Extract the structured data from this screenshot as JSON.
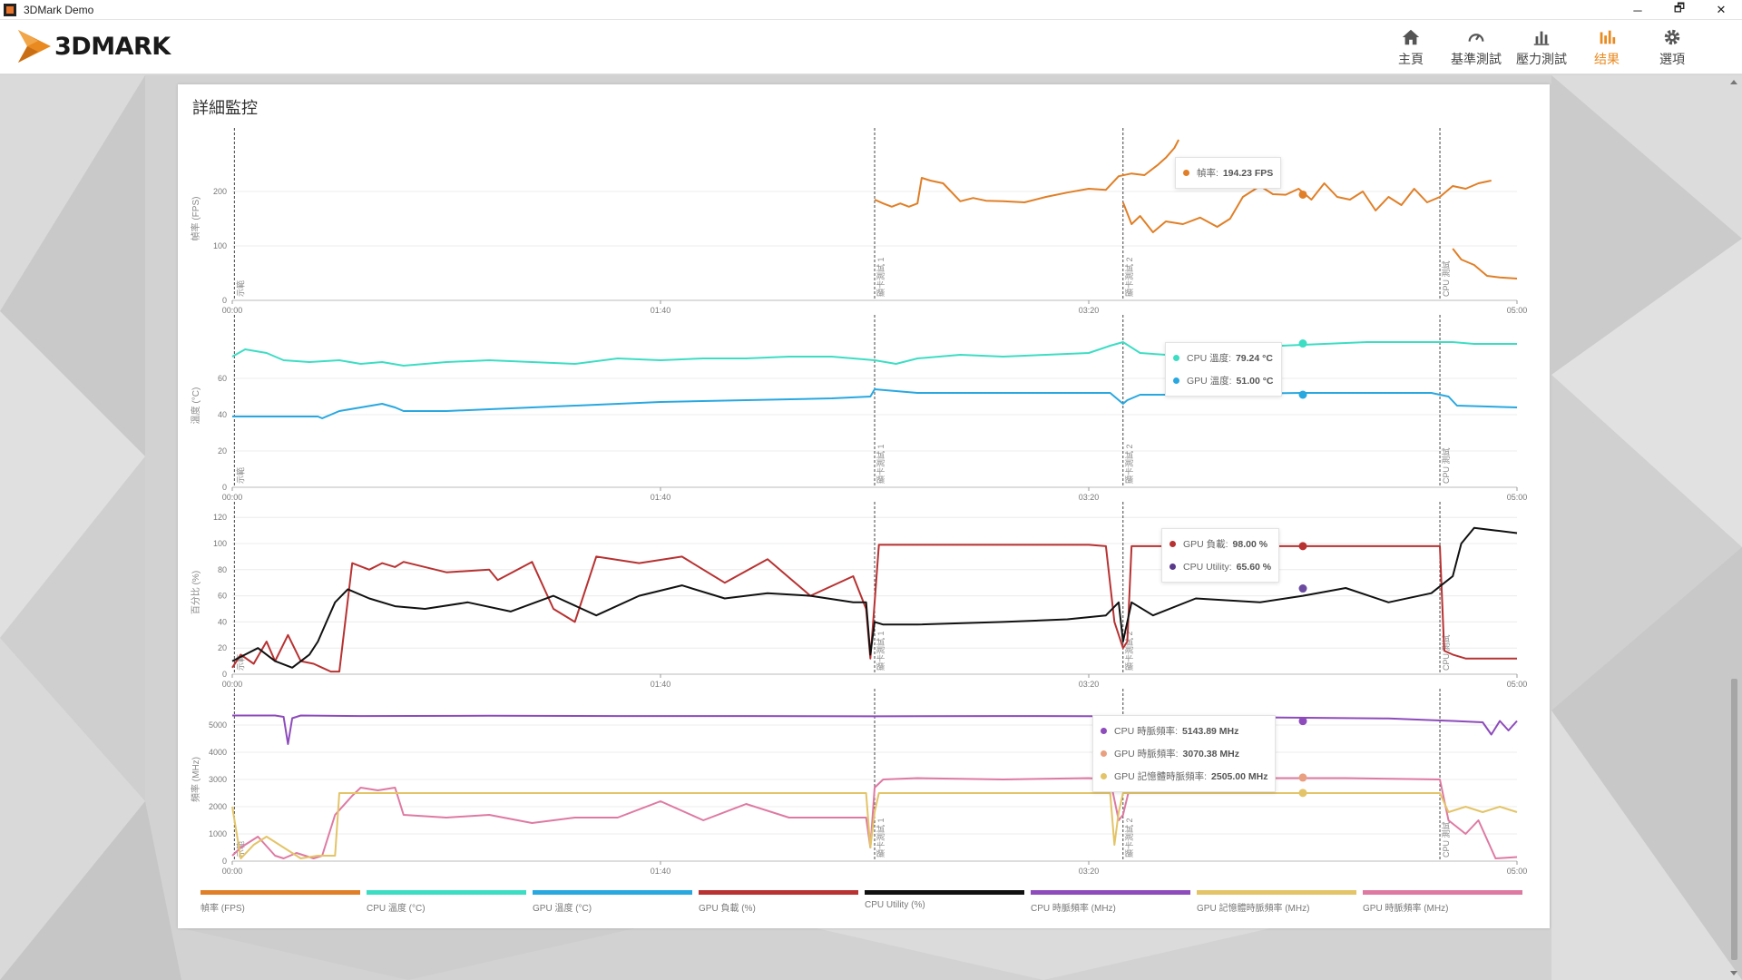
{
  "window": {
    "title": "3DMark Demo",
    "minimize": "─",
    "maximize": "🗗",
    "close": "✕"
  },
  "app": {
    "logo_text": "3DMARK",
    "logo_icon": "3dmark-logo-icon"
  },
  "nav": [
    {
      "label": "主頁",
      "icon": "home-icon"
    },
    {
      "label": "基準測試",
      "icon": "speedometer-icon"
    },
    {
      "label": "壓力測試",
      "icon": "bar-chart-icon"
    },
    {
      "label": "结果",
      "icon": "results-chart-icon",
      "active": true
    },
    {
      "label": "選項",
      "icon": "gear-icon"
    }
  ],
  "page": {
    "title": "詳細監控"
  },
  "colors": {
    "accent": "#e98a20",
    "fps": "#e07f27",
    "cpu_temp": "#3dddc4",
    "gpu_temp": "#29a8e0",
    "gpu_load": "#b83232",
    "cpu_util": "#111111",
    "cpu_clock": "#8d4bbb",
    "gpu_mem_clock": "#e3c468",
    "gpu_clock": "#de7aa2"
  },
  "x_ticks": [
    "00:00",
    "01:40",
    "03:20",
    "05:00"
  ],
  "markers": [
    {
      "label": "示範",
      "t": 0.02
    },
    {
      "label": "顯卡測試 1",
      "t": 249
    },
    {
      "label": "顯卡測試 2",
      "t": 346
    },
    {
      "label": "CPU 測試",
      "t": 469
    }
  ],
  "tooltips": {
    "fps": [
      {
        "name": "幀率",
        "value": "194.23 FPS",
        "color": "#e07f27"
      }
    ],
    "temp": [
      {
        "name": "CPU 溫度",
        "value": "79.24 °C",
        "color": "#3dddc4"
      },
      {
        "name": "GPU 溫度",
        "value": "51.00 °C",
        "color": "#29a8e0"
      }
    ],
    "pct": [
      {
        "name": "GPU 負載",
        "value": "98.00 %",
        "color": "#b83232"
      },
      {
        "name": "CPU Utility",
        "value": "65.60 %",
        "color": "#5a3a8a"
      }
    ],
    "clock": [
      {
        "name": "CPU 時脈頻率",
        "value": "5143.89 MHz",
        "color": "#8d4bbb"
      },
      {
        "name": "GPU 時脈頻率",
        "value": "3070.38 MHz",
        "color": "#e8a080"
      },
      {
        "name": "GPU 記憶體時脈頻率",
        "value": "2505.00 MHz",
        "color": "#e3c468"
      }
    ]
  },
  "legend": [
    {
      "label": "幀率 (FPS)",
      "color": "#e07f27"
    },
    {
      "label": "CPU 溫度 (°C)",
      "color": "#3dddc4"
    },
    {
      "label": "GPU 溫度 (°C)",
      "color": "#29a8e0"
    },
    {
      "label": "GPU 負載 (%)",
      "color": "#b83232"
    },
    {
      "label": "CPU Utility (%)",
      "color": "#111111"
    },
    {
      "label": "CPU 時脈頻率 (MHz)",
      "color": "#8d4bbb"
    },
    {
      "label": "GPU 記憶體時脈頻率 (MHz)",
      "color": "#e3c468"
    },
    {
      "label": "GPU 時脈頻率 (MHz)",
      "color": "#de7aa2"
    }
  ],
  "chart_data": [
    {
      "type": "line",
      "ylabel": "幀率 (FPS)",
      "yticks": [
        0,
        100,
        200
      ],
      "ylim": [
        0,
        300
      ],
      "xlim": [
        0,
        300
      ],
      "series": [
        {
          "name": "幀率",
          "color": "#e07f27",
          "x": [
            150,
            152,
            154,
            156,
            158,
            160,
            161,
            163,
            166,
            170,
            173,
            176,
            180,
            185,
            190,
            195,
            200,
            204,
            207,
            210,
            213,
            216,
            218,
            220,
            221
          ],
          "y": [
            185,
            178,
            172,
            178,
            172,
            178,
            225,
            220,
            215,
            182,
            188,
            183,
            182,
            180,
            190,
            198,
            205,
            203,
            228,
            233,
            230,
            248,
            262,
            280,
            295
          ]
        },
        {
          "name": "幀率",
          "color": "#e07f27",
          "x": [
            208,
            210,
            212,
            215,
            218,
            222,
            226,
            230,
            233,
            236,
            240,
            243,
            246,
            249,
            252,
            255,
            258,
            261,
            264,
            267,
            270,
            273,
            276,
            279,
            282,
            285,
            288,
            291,
            294
          ],
          "y": [
            180,
            140,
            155,
            125,
            145,
            140,
            152,
            135,
            150,
            190,
            210,
            195,
            194,
            205,
            185,
            215,
            190,
            185,
            200,
            165,
            190,
            175,
            205,
            180,
            190,
            210,
            205,
            215,
            220
          ]
        },
        {
          "name": "幀率",
          "color": "#e07f27",
          "x": [
            285,
            287,
            290,
            293,
            296,
            300
          ],
          "y": [
            95,
            75,
            65,
            45,
            42,
            40
          ]
        }
      ]
    },
    {
      "type": "line",
      "ylabel": "溫度 (°C)",
      "yticks": [
        0,
        20,
        40,
        60
      ],
      "ylim": [
        0,
        90
      ],
      "xlim": [
        0,
        300
      ],
      "series": [
        {
          "name": "CPU 溫度",
          "color": "#3dddc4",
          "x": [
            0,
            3,
            8,
            12,
            18,
            25,
            30,
            35,
            40,
            50,
            60,
            70,
            80,
            90,
            100,
            110,
            120,
            130,
            140,
            150,
            155,
            160,
            170,
            180,
            190,
            200,
            205,
            208,
            212,
            218,
            225,
            235,
            245,
            255,
            265,
            275,
            285,
            290,
            300
          ],
          "y": [
            72,
            76,
            74,
            70,
            69,
            70,
            68,
            69,
            67,
            69,
            70,
            69,
            68,
            71,
            70,
            71,
            71,
            72,
            72,
            70,
            68,
            71,
            73,
            72,
            73,
            74,
            78,
            80,
            74,
            73,
            75,
            77,
            78,
            79,
            80,
            80,
            80,
            79,
            79
          ]
        },
        {
          "name": "GPU 溫度",
          "color": "#29a8e0",
          "x": [
            0,
            10,
            20,
            21,
            25,
            30,
            35,
            38,
            40,
            50,
            60,
            80,
            100,
            120,
            140,
            149,
            150,
            155,
            160,
            170,
            190,
            205,
            208,
            209,
            212,
            220,
            250,
            280,
            284,
            286,
            300
          ],
          "y": [
            39,
            39,
            39,
            38,
            42,
            44,
            46,
            44,
            42,
            42,
            43,
            45,
            47,
            48,
            49,
            50,
            54,
            53,
            52,
            52,
            52,
            52,
            46,
            48,
            51,
            51,
            52,
            52,
            50,
            45,
            44
          ]
        }
      ]
    },
    {
      "type": "line",
      "ylabel": "百分比 (%)",
      "yticks": [
        0,
        20,
        40,
        60,
        80,
        100,
        120
      ],
      "ylim": [
        0,
        125
      ],
      "xlim": [
        0,
        300
      ],
      "series": [
        {
          "name": "GPU 負載",
          "color": "#b83232",
          "x": [
            0,
            2,
            5,
            8,
            10,
            13,
            16,
            19,
            21,
            23,
            25,
            28,
            32,
            35,
            38,
            40,
            50,
            60,
            62,
            70,
            75,
            80,
            85,
            95,
            105,
            115,
            125,
            135,
            145,
            148,
            149,
            150,
            151,
            160,
            200,
            204,
            206,
            208,
            209,
            210,
            220,
            250,
            275,
            282,
            283,
            285,
            288,
            292,
            300
          ],
          "y": [
            5,
            15,
            8,
            25,
            10,
            30,
            10,
            8,
            5,
            2,
            2,
            85,
            80,
            85,
            82,
            86,
            78,
            80,
            72,
            86,
            50,
            40,
            90,
            85,
            90,
            70,
            88,
            60,
            75,
            50,
            12,
            55,
            99,
            99,
            99,
            98,
            40,
            20,
            25,
            98,
            98,
            98,
            98,
            98,
            18,
            15,
            12,
            12,
            12
          ]
        },
        {
          "name": "CPU Utility",
          "color": "#111111",
          "x": [
            0,
            3,
            6,
            10,
            14,
            18,
            20,
            22,
            24,
            27,
            32,
            38,
            45,
            55,
            65,
            75,
            85,
            95,
            105,
            115,
            125,
            135,
            145,
            148,
            149,
            150,
            152,
            160,
            180,
            195,
            204,
            207,
            208,
            210,
            215,
            225,
            240,
            250,
            260,
            270,
            280,
            285,
            287,
            290,
            295,
            300
          ],
          "y": [
            10,
            15,
            20,
            10,
            5,
            15,
            25,
            40,
            55,
            65,
            58,
            52,
            50,
            55,
            48,
            60,
            45,
            60,
            68,
            58,
            62,
            60,
            55,
            55,
            15,
            40,
            38,
            38,
            40,
            42,
            45,
            55,
            25,
            55,
            45,
            58,
            55,
            60,
            66,
            55,
            62,
            75,
            100,
            112,
            110,
            108
          ]
        }
      ]
    },
    {
      "type": "line",
      "ylabel": "頻率 (MHz)",
      "yticks": [
        0,
        1000,
        2000,
        3000,
        4000,
        5000
      ],
      "ylim": [
        0,
        6000
      ],
      "xlim": [
        0,
        300
      ],
      "series": [
        {
          "name": "CPU 時脈頻率",
          "color": "#8d4bbb",
          "x": [
            0,
            10,
            12,
            13,
            14,
            16,
            30,
            60,
            90,
            120,
            150,
            180,
            210,
            240,
            270,
            280,
            285,
            292,
            294,
            296,
            298,
            300
          ],
          "y": [
            5350,
            5350,
            5300,
            4300,
            5250,
            5350,
            5330,
            5340,
            5330,
            5330,
            5320,
            5330,
            5320,
            5280,
            5240,
            5180,
            5150,
            5100,
            4650,
            5150,
            4800,
            5150
          ]
        },
        {
          "name": "GPU 時脈頻率",
          "color": "#de7aa2",
          "x": [
            0,
            2,
            6,
            10,
            12,
            15,
            19,
            21,
            24,
            28,
            30,
            34,
            38,
            40,
            50,
            60,
            70,
            80,
            90,
            100,
            110,
            120,
            130,
            140,
            148,
            149,
            150,
            152,
            160,
            180,
            200,
            205,
            207,
            208,
            210,
            220,
            260,
            282,
            284,
            288,
            291,
            295,
            300
          ],
          "y": [
            200,
            500,
            900,
            200,
            100,
            300,
            100,
            200,
            1700,
            2400,
            2700,
            2600,
            2700,
            1700,
            1600,
            1700,
            1400,
            1600,
            1600,
            2200,
            1500,
            2100,
            1600,
            1600,
            1600,
            500,
            2700,
            3000,
            3050,
            3000,
            3050,
            3000,
            1500,
            1700,
            3000,
            3050,
            3050,
            3000,
            1500,
            1000,
            1500,
            100,
            150
          ]
        },
        {
          "name": "GPU 記憶體時脈頻率",
          "color": "#e3c468",
          "x": [
            0,
            2,
            5,
            8,
            12,
            16,
            20,
            22,
            24,
            25,
            30,
            148,
            149,
            150,
            151,
            170,
            200,
            205,
            206,
            207,
            208,
            210,
            240,
            282,
            284,
            288,
            292,
            296,
            300
          ],
          "y": [
            2000,
            100,
            600,
            900,
            500,
            100,
            200,
            200,
            200,
            2500,
            2500,
            2500,
            500,
            1800,
            2500,
            2500,
            2500,
            2500,
            600,
            1800,
            2500,
            2500,
            2500,
            2500,
            1800,
            2000,
            1800,
            2000,
            1800
          ]
        }
      ]
    }
  ]
}
